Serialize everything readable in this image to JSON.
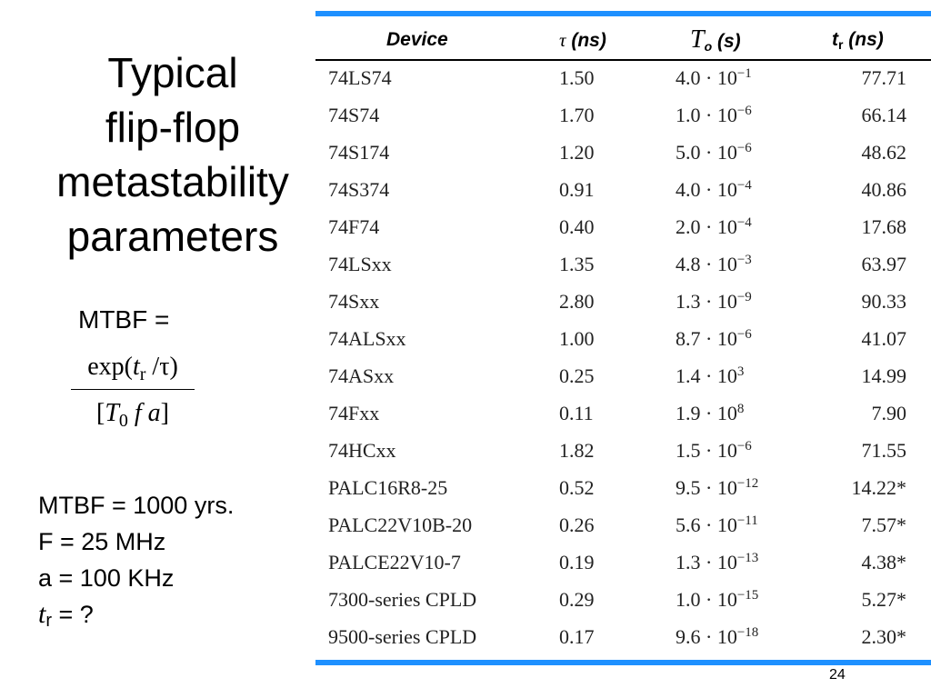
{
  "title": {
    "line1": "Typical",
    "line2": "flip-flop",
    "line3": "metastability",
    "line4": "parameters"
  },
  "formula": {
    "label": "MTBF =",
    "num_prefix": "exp(",
    "num_var": "t",
    "num_sub": "r",
    "num_suffix": " /τ)",
    "den_open": "[",
    "den_var": "T",
    "den_sub": "0",
    "den_rest": " f a",
    "den_close": "]"
  },
  "given": {
    "line1": "MTBF = 1000 yrs.",
    "line2": "F = 25 MHz",
    "line3": "a = 100 KHz",
    "line4_var": "t",
    "line4_sub": "r",
    "line4_rest": " = ?"
  },
  "table": {
    "headers": {
      "device": "Device",
      "tau_sym": "τ",
      "tau_unit": " (ns)",
      "t0_sym": "T",
      "t0_sub": "o",
      "t0_unit": " (s)",
      "tr_sym": "t",
      "tr_sub": "r",
      "tr_unit": " (ns)"
    },
    "rows": [
      {
        "device": "74LS74",
        "tau": "1.50",
        "t0_mant": "4.0 · 10",
        "t0_exp": "−1",
        "tr": "77.71"
      },
      {
        "device": "74S74",
        "tau": "1.70",
        "t0_mant": "1.0 · 10",
        "t0_exp": "−6",
        "tr": "66.14"
      },
      {
        "device": "74S174",
        "tau": "1.20",
        "t0_mant": "5.0 · 10",
        "t0_exp": "−6",
        "tr": "48.62"
      },
      {
        "device": "74S374",
        "tau": "0.91",
        "t0_mant": "4.0 · 10",
        "t0_exp": "−4",
        "tr": "40.86"
      },
      {
        "device": "74F74",
        "tau": "0.40",
        "t0_mant": "2.0 · 10",
        "t0_exp": "−4",
        "tr": "17.68"
      },
      {
        "device": "74LSxx",
        "tau": "1.35",
        "t0_mant": "4.8 · 10",
        "t0_exp": "−3",
        "tr": "63.97"
      },
      {
        "device": "74Sxx",
        "tau": "2.80",
        "t0_mant": "1.3 · 10",
        "t0_exp": "−9",
        "tr": "90.33"
      },
      {
        "device": "74ALSxx",
        "tau": "1.00",
        "t0_mant": "8.7 · 10",
        "t0_exp": "−6",
        "tr": "41.07"
      },
      {
        "device": "74ASxx",
        "tau": "0.25",
        "t0_mant": "1.4 · 10",
        "t0_exp": "3",
        "tr": "14.99"
      },
      {
        "device": "74Fxx",
        "tau": "0.11",
        "t0_mant": "1.9 · 10",
        "t0_exp": "8",
        "tr": "7.90"
      },
      {
        "device": "74HCxx",
        "tau": "1.82",
        "t0_mant": "1.5 · 10",
        "t0_exp": "−6",
        "tr": "71.55"
      },
      {
        "device": "PALC16R8-25",
        "tau": "0.52",
        "t0_mant": "9.5 · 10",
        "t0_exp": "−12",
        "tr": "14.22*"
      },
      {
        "device": "PALC22V10B-20",
        "tau": "0.26",
        "t0_mant": "5.6 · 10",
        "t0_exp": "−11",
        "tr": "7.57*"
      },
      {
        "device": "PALCE22V10-7",
        "tau": "0.19",
        "t0_mant": "1.3 · 10",
        "t0_exp": "−13",
        "tr": "4.38*"
      },
      {
        "device": "7300-series CPLD",
        "tau": "0.29",
        "t0_mant": "1.0 · 10",
        "t0_exp": "−15",
        "tr": "5.27*"
      },
      {
        "device": "9500-series CPLD",
        "tau": "0.17",
        "t0_mant": "9.6 · 10",
        "t0_exp": "−18",
        "tr": "2.30*"
      }
    ]
  },
  "page_number": "24",
  "colors": {
    "rule": "#1e90ff"
  }
}
